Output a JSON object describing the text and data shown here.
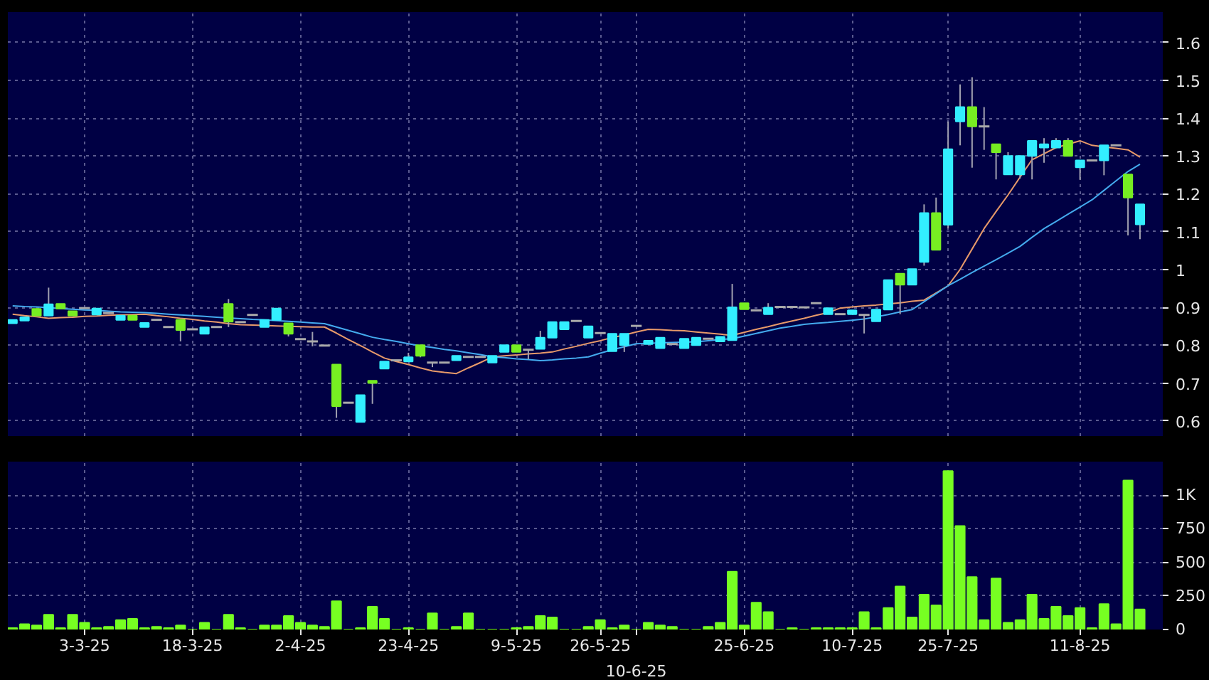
{
  "chart_data": [
    {
      "type": "candlestick",
      "categories": [
        null,
        null,
        null,
        null,
        null,
        null,
        null,
        null,
        null,
        null,
        null,
        null,
        null,
        null,
        null,
        null,
        null,
        null,
        null,
        null,
        null,
        null,
        null,
        null,
        null,
        null,
        null,
        null,
        null,
        null,
        null,
        null,
        null,
        null,
        null,
        null,
        null,
        null,
        null,
        null,
        null,
        null,
        null,
        null,
        null,
        null,
        null,
        null,
        null,
        null,
        null,
        null,
        null,
        null,
        null,
        null,
        null,
        null,
        null,
        null,
        null,
        null,
        null,
        null,
        null,
        null,
        null,
        null,
        null,
        null,
        null,
        null,
        null,
        null,
        null,
        null,
        null,
        null,
        null,
        null,
        null,
        null,
        null,
        null,
        null,
        null,
        null,
        null,
        null,
        null,
        null,
        null,
        null,
        null,
        null
      ],
      "tick_labels": "y",
      "ylim": [
        0.56,
        1.68
      ],
      "yticks": [
        0.6,
        0.7,
        0.8,
        0.9,
        1,
        1.1,
        1.2,
        1.3,
        1.4,
        1.5,
        1.6
      ],
      "grid": true,
      "series": [
        {
          "type": "line",
          "color": "#e89a6a",
          "values": [
            0.882,
            0.878,
            0.875,
            0.871,
            0.873,
            0.874,
            0.876,
            0.877,
            0.879,
            0.88,
            0.881,
            0.882,
            0.878,
            0.875,
            0.871,
            0.868,
            0.864,
            0.861,
            0.857,
            0.854,
            0.853,
            0.852,
            0.851,
            0.85,
            0.849,
            0.848,
            0.848,
            0.832,
            0.815,
            0.799,
            0.782,
            0.766,
            0.757,
            0.749,
            0.74,
            0.732,
            0.728,
            0.725,
            0.74,
            0.754,
            0.769,
            0.772,
            0.774,
            0.777,
            0.779,
            0.782,
            0.79,
            0.797,
            0.805,
            0.812,
            0.82,
            0.827,
            0.835,
            0.842,
            0.841,
            0.839,
            0.838,
            0.835,
            0.832,
            0.829,
            0.826,
            0.834,
            0.842,
            0.849,
            0.857,
            0.864,
            0.871,
            0.879,
            0.886,
            0.898,
            0.901,
            0.904,
            0.906,
            0.909,
            0.912,
            0.916,
            0.919,
            0.938,
            0.957,
            1.0,
            1.054,
            1.108,
            1.153,
            1.197,
            1.244,
            1.29,
            1.306,
            1.322,
            1.331,
            1.34,
            1.328,
            1.324,
            1.32,
            1.316,
            1.297
          ]
        },
        {
          "type": "line",
          "color": "#44aaee",
          "values": [
            0.904,
            0.902,
            0.901,
            0.899,
            0.897,
            0.895,
            0.893,
            0.892,
            0.89,
            0.888,
            0.887,
            0.886,
            0.884,
            0.882,
            0.88,
            0.878,
            0.876,
            0.874,
            0.872,
            0.87,
            0.868,
            0.867,
            0.865,
            0.863,
            0.861,
            0.859,
            0.857,
            0.848,
            0.839,
            0.83,
            0.821,
            0.815,
            0.81,
            0.804,
            0.798,
            0.794,
            0.789,
            0.785,
            0.78,
            0.775,
            0.769,
            0.767,
            0.764,
            0.762,
            0.759,
            0.761,
            0.764,
            0.766,
            0.769,
            0.779,
            0.788,
            0.796,
            0.804,
            0.805,
            0.806,
            0.807,
            0.808,
            0.809,
            0.812,
            0.815,
            0.817,
            0.824,
            0.831,
            0.838,
            0.845,
            0.85,
            0.855,
            0.858,
            0.86,
            0.863,
            0.866,
            0.869,
            0.875,
            0.881,
            0.888,
            0.894,
            0.915,
            0.936,
            0.957,
            0.974,
            0.992,
            1.009,
            1.026,
            1.043,
            1.061,
            1.085,
            1.108,
            1.127,
            1.146,
            1.165,
            1.184,
            1.209,
            1.234,
            1.259,
            1.278
          ]
        },
        {
          "type": "candlestick",
          "ohlc": [
            [
              0.858,
              0.868,
              0.857,
              0.867
            ],
            [
              0.865,
              0.874,
              0.865,
              0.874
            ],
            [
              0.896,
              0.896,
              0.878,
              0.878
            ],
            [
              0.878,
              0.952,
              0.878,
              0.908
            ],
            [
              0.909,
              0.909,
              0.897,
              0.897
            ],
            [
              0.89,
              0.89,
              0.878,
              0.878
            ],
            [
              0.898,
              0.898,
              0.898,
              0.898
            ],
            [
              0.881,
              0.897,
              0.881,
              0.897
            ],
            [
              0.885,
              0.885,
              0.885,
              0.885
            ],
            [
              0.867,
              0.878,
              0.867,
              0.878
            ],
            [
              0.878,
              0.878,
              0.867,
              0.867
            ],
            [
              0.848,
              0.859,
              0.848,
              0.859
            ],
            [
              0.867,
              0.867,
              0.867,
              0.867
            ],
            [
              0.848,
              0.848,
              0.848,
              0.848
            ],
            [
              0.867,
              0.867,
              0.81,
              0.84
            ],
            [
              0.842,
              0.842,
              0.842,
              0.842
            ],
            [
              0.83,
              0.847,
              0.83,
              0.847
            ],
            [
              0.848,
              0.848,
              0.848,
              0.848
            ],
            [
              0.909,
              0.922,
              0.848,
              0.862
            ],
            [
              0.861,
              0.861,
              0.861,
              0.861
            ],
            [
              0.88,
              0.88,
              0.88,
              0.88
            ],
            [
              0.848,
              0.867,
              0.848,
              0.867
            ],
            [
              0.867,
              0.897,
              0.867,
              0.897
            ],
            [
              0.858,
              0.858,
              0.823,
              0.83
            ],
            [
              0.816,
              0.816,
              0.816,
              0.816
            ],
            [
              0.81,
              0.835,
              0.797,
              0.81
            ],
            [
              0.799,
              0.799,
              0.799,
              0.799
            ],
            [
              0.749,
              0.749,
              0.608,
              0.639
            ],
            [
              0.648,
              0.648,
              0.648,
              0.648
            ],
            [
              0.597,
              0.668,
              0.597,
              0.668
            ],
            [
              0.706,
              0.706,
              0.645,
              0.7
            ],
            [
              0.738,
              0.757,
              0.738,
              0.757
            ],
            [
              0.76,
              0.76,
              0.76,
              0.76
            ],
            [
              0.757,
              0.78,
              0.757,
              0.768
            ],
            [
              0.8,
              0.8,
              0.768,
              0.772
            ],
            [
              0.754,
              0.754,
              0.742,
              0.754
            ],
            [
              0.754,
              0.754,
              0.754,
              0.754
            ],
            [
              0.76,
              0.772,
              0.76,
              0.772
            ],
            [
              0.769,
              0.769,
              0.769,
              0.769
            ],
            [
              0.769,
              0.769,
              0.769,
              0.769
            ],
            [
              0.754,
              0.772,
              0.754,
              0.772
            ],
            [
              0.782,
              0.8,
              0.782,
              0.8
            ],
            [
              0.8,
              0.8,
              0.782,
              0.782
            ],
            [
              0.788,
              0.788,
              0.763,
              0.788
            ],
            [
              0.79,
              0.838,
              0.79,
              0.82
            ],
            [
              0.82,
              0.861,
              0.82,
              0.861
            ],
            [
              0.842,
              0.861,
              0.842,
              0.861
            ],
            [
              0.864,
              0.864,
              0.864,
              0.864
            ],
            [
              0.82,
              0.85,
              0.82,
              0.85
            ],
            [
              0.832,
              0.832,
              0.832,
              0.832
            ],
            [
              0.784,
              0.83,
              0.784,
              0.83
            ],
            [
              0.8,
              0.83,
              0.782,
              0.83
            ],
            [
              0.851,
              0.851,
              0.851,
              0.851
            ],
            [
              0.803,
              0.812,
              0.803,
              0.812
            ],
            [
              0.792,
              0.82,
              0.792,
              0.82
            ],
            [
              0.803,
              0.803,
              0.803,
              0.803
            ],
            [
              0.792,
              0.817,
              0.792,
              0.817
            ],
            [
              0.8,
              0.82,
              0.8,
              0.82
            ],
            [
              0.817,
              0.817,
              0.817,
              0.817
            ],
            [
              0.81,
              0.822,
              0.81,
              0.822
            ],
            [
              0.813,
              0.962,
              0.813,
              0.9
            ],
            [
              0.911,
              0.911,
              0.895,
              0.895
            ],
            [
              0.892,
              0.892,
              0.892,
              0.892
            ],
            [
              0.882,
              0.911,
              0.882,
              0.899
            ],
            [
              0.901,
              0.901,
              0.901,
              0.901
            ],
            [
              0.901,
              0.901,
              0.901,
              0.901
            ],
            [
              0.9,
              0.9,
              0.9,
              0.9
            ],
            [
              0.911,
              0.911,
              0.911,
              0.911
            ],
            [
              0.882,
              0.898,
              0.882,
              0.898
            ],
            [
              0.882,
              0.882,
              0.882,
              0.882
            ],
            [
              0.882,
              0.892,
              0.882,
              0.892
            ],
            [
              0.88,
              0.88,
              0.831,
              0.88
            ],
            [
              0.863,
              0.894,
              0.863,
              0.894
            ],
            [
              0.894,
              0.972,
              0.894,
              0.972
            ],
            [
              0.989,
              0.989,
              0.882,
              0.96
            ],
            [
              0.96,
              1.001,
              0.96,
              1.001
            ],
            [
              1.02,
              1.172,
              1.01,
              1.149
            ],
            [
              1.149,
              1.19,
              1.052,
              1.052
            ],
            [
              1.118,
              1.391,
              1.109,
              1.318
            ],
            [
              1.391,
              1.489,
              1.328,
              1.429
            ],
            [
              1.429,
              1.508,
              1.269,
              1.378
            ],
            [
              1.378,
              1.429,
              1.316,
              1.378
            ],
            [
              1.331,
              1.331,
              1.238,
              1.31
            ],
            [
              1.251,
              1.31,
              1.251,
              1.3
            ],
            [
              1.251,
              1.3,
              1.24,
              1.3
            ],
            [
              1.3,
              1.34,
              1.238,
              1.34
            ],
            [
              1.322,
              1.347,
              1.282,
              1.331
            ],
            [
              1.322,
              1.347,
              1.322,
              1.34
            ],
            [
              1.34,
              1.347,
              1.3,
              1.3
            ],
            [
              1.27,
              1.288,
              1.237,
              1.288
            ],
            [
              1.288,
              1.288,
              1.288,
              1.288
            ],
            [
              1.288,
              1.328,
              1.249,
              1.328
            ],
            [
              1.328,
              1.328,
              1.328,
              1.328
            ],
            [
              1.251,
              1.251,
              1.09,
              1.19
            ],
            [
              1.119,
              1.172,
              1.08,
              1.172
            ]
          ],
          "colors": [
            "#33eeff",
            "#33eeff",
            "#77ee22",
            "#33eeff",
            "#77ee22",
            "#77ee22",
            "#aaaaaa",
            "#33eeff",
            "#aaaaaa",
            "#33eeff",
            "#77ee22",
            "#33eeff",
            "#aaaaaa",
            "#aaaaaa",
            "#77ee22",
            "#aaaaaa",
            "#33eeff",
            "#aaaaaa",
            "#77ee22",
            "#aaaaaa",
            "#aaaaaa",
            "#33eeff",
            "#33eeff",
            "#77ee22",
            "#aaaaaa",
            "#aaaaaa",
            "#aaaaaa",
            "#77ee22",
            "#aaaaaa",
            "#33eeff",
            "#77ee22",
            "#33eeff",
            "#aaaaaa",
            "#33eeff",
            "#77ee22",
            "#aaaaaa",
            "#aaaaaa",
            "#33eeff",
            "#aaaaaa",
            "#aaaaaa",
            "#33eeff",
            "#33eeff",
            "#77ee22",
            "#aaaaaa",
            "#33eeff",
            "#33eeff",
            "#33eeff",
            "#aaaaaa",
            "#33eeff",
            "#aaaaaa",
            "#33eeff",
            "#33eeff",
            "#aaaaaa",
            "#33eeff",
            "#33eeff",
            "#aaaaaa",
            "#33eeff",
            "#33eeff",
            "#aaaaaa",
            "#33eeff",
            "#33eeff",
            "#77ee22",
            "#aaaaaa",
            "#33eeff",
            "#aaaaaa",
            "#aaaaaa",
            "#aaaaaa",
            "#aaaaaa",
            "#33eeff",
            "#aaaaaa",
            "#33eeff",
            "#aaaaaa",
            "#33eeff",
            "#33eeff",
            "#77ee22",
            "#33eeff",
            "#33eeff",
            "#77ee22",
            "#33eeff",
            "#33eeff",
            "#77ee22",
            "#aaaaaa",
            "#77ee22",
            "#33eeff",
            "#33eeff",
            "#33eeff",
            "#33eeff",
            "#33eeff",
            "#77ee22",
            "#33eeff",
            "#aaaaaa",
            "#33eeff",
            "#aaaaaa",
            "#77ee22",
            "#33eeff"
          ]
        }
      ]
    },
    {
      "type": "bar",
      "categories": [
        null,
        null,
        null,
        null,
        null,
        null,
        "3-3-25",
        null,
        null,
        null,
        null,
        null,
        null,
        null,
        null,
        "18-3-25",
        null,
        null,
        null,
        null,
        null,
        null,
        null,
        null,
        "2-4-25",
        null,
        null,
        null,
        null,
        null,
        null,
        null,
        null,
        "23-4-25",
        null,
        null,
        null,
        null,
        null,
        null,
        null,
        null,
        "9-5-25",
        null,
        null,
        null,
        null,
        null,
        null,
        "26-5-25",
        null,
        null,
        "10-6-25",
        null,
        null,
        null,
        null,
        null,
        null,
        null,
        null,
        "25-6-25",
        null,
        null,
        null,
        null,
        null,
        null,
        null,
        null,
        "10-7-25",
        null,
        null,
        null,
        null,
        null,
        null,
        null,
        "25-7-25",
        null,
        null,
        null,
        null,
        null,
        null,
        null,
        null,
        null,
        null,
        "11-8-25",
        null,
        null,
        null,
        null,
        null
      ],
      "ylim": [
        0,
        1250
      ],
      "yticks": [
        0,
        250,
        500,
        750,
        {
          "value": 1000,
          "label": "1K"
        }
      ],
      "grid": true,
      "color": "#77ff22",
      "values": [
        10,
        40,
        30,
        110,
        10,
        110,
        50,
        10,
        20,
        70,
        80,
        10,
        20,
        10,
        30,
        0,
        50,
        0,
        110,
        10,
        0,
        30,
        30,
        100,
        50,
        30,
        20,
        210,
        0,
        10,
        170,
        80,
        0,
        10,
        0,
        120,
        0,
        20,
        120,
        0,
        0,
        0,
        10,
        20,
        100,
        90,
        0,
        0,
        20,
        70,
        10,
        30,
        0,
        50,
        30,
        20,
        0,
        0,
        20,
        50,
        430,
        30,
        200,
        130,
        0,
        10,
        0,
        10,
        10,
        10,
        10,
        130,
        10,
        160,
        320,
        90,
        260,
        180,
        1180,
        770,
        390,
        70,
        380,
        50,
        70,
        260,
        80,
        170,
        100,
        160,
        10,
        190,
        40,
        1110,
        150
      ]
    }
  ]
}
